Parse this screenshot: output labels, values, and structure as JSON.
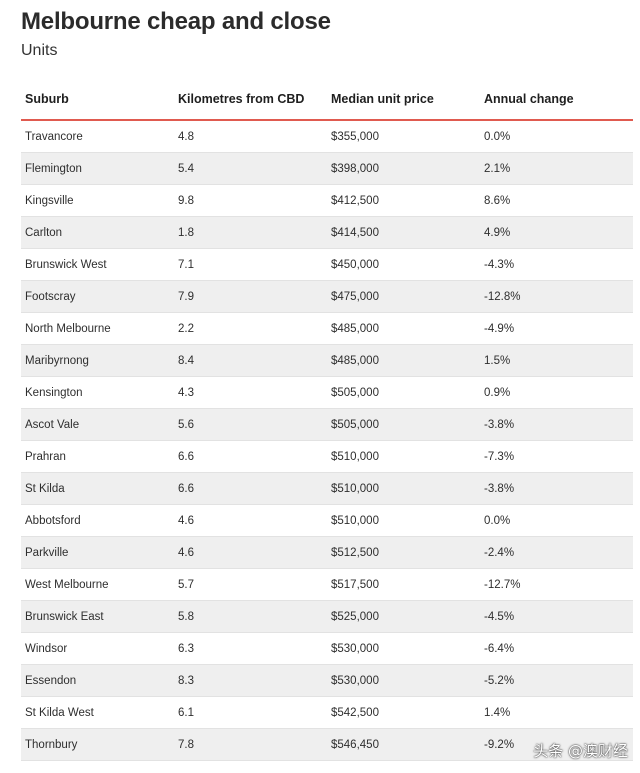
{
  "title": "Melbourne cheap and close",
  "subtitle": "Units",
  "table": {
    "headers": [
      "Suburb",
      "Kilometres from CBD",
      "Median unit price",
      "Annual change"
    ],
    "rows": [
      [
        "Travancore",
        "4.8",
        "$355,000",
        "0.0%"
      ],
      [
        "Flemington",
        "5.4",
        "$398,000",
        "2.1%"
      ],
      [
        "Kingsville",
        "9.8",
        "$412,500",
        "8.6%"
      ],
      [
        "Carlton",
        "1.8",
        "$414,500",
        "4.9%"
      ],
      [
        "Brunswick West",
        "7.1",
        "$450,000",
        "-4.3%"
      ],
      [
        "Footscray",
        "7.9",
        "$475,000",
        "-12.8%"
      ],
      [
        "North Melbourne",
        "2.2",
        "$485,000",
        "-4.9%"
      ],
      [
        "Maribyrnong",
        "8.4",
        "$485,000",
        "1.5%"
      ],
      [
        "Kensington",
        "4.3",
        "$505,000",
        "0.9%"
      ],
      [
        "Ascot Vale",
        "5.6",
        "$505,000",
        "-3.8%"
      ],
      [
        "Prahran",
        "6.6",
        "$510,000",
        "-7.3%"
      ],
      [
        "St Kilda",
        "6.6",
        "$510,000",
        "-3.8%"
      ],
      [
        "Abbotsford",
        "4.6",
        "$510,000",
        "0.0%"
      ],
      [
        "Parkville",
        "4.6",
        "$512,500",
        "-2.4%"
      ],
      [
        "West Melbourne",
        "5.7",
        "$517,500",
        "-12.7%"
      ],
      [
        "Brunswick East",
        "5.8",
        "$525,000",
        "-4.5%"
      ],
      [
        "Windsor",
        "6.3",
        "$530,000",
        "-6.4%"
      ],
      [
        "Essendon",
        "8.3",
        "$530,000",
        "-5.2%"
      ],
      [
        "St Kilda West",
        "6.1",
        "$542,500",
        "1.4%"
      ],
      [
        "Thornbury",
        "7.8",
        "$546,450",
        "-9.2%"
      ]
    ]
  },
  "watermark": "头条 @澳财经",
  "colors": {
    "header_rule": "#e05a4f",
    "zebra_row": "#efefef"
  }
}
